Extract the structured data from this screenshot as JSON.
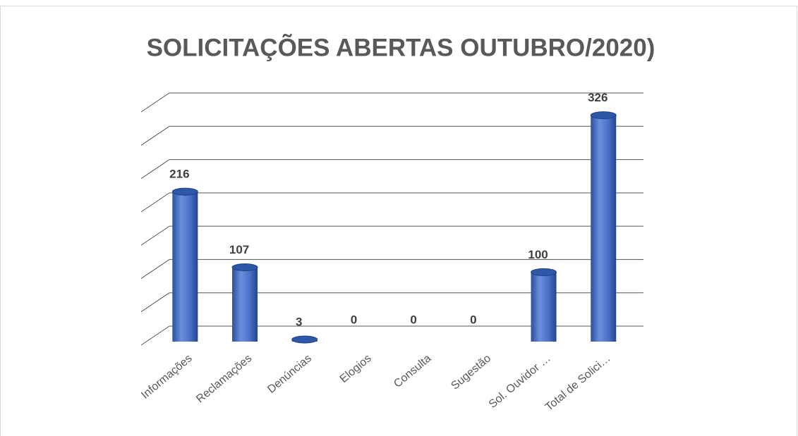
{
  "chart_data": {
    "type": "bar3d",
    "title": "SOLICITAÇÕES ABERTAS OUTUBRO/2020)",
    "categories": [
      "Informações",
      "Reclamações",
      "Denúncias",
      "Elogios",
      "Consulta",
      "Sugestão",
      "Sol. Ouvidor …",
      "Total de Solici…"
    ],
    "values": [
      216,
      107,
      3,
      0,
      0,
      0,
      100,
      326
    ],
    "color": "#4472c4",
    "ylim": [
      0,
      350
    ],
    "yticks": [
      0,
      50,
      100,
      150,
      200,
      250,
      300,
      350
    ],
    "grid": true
  }
}
